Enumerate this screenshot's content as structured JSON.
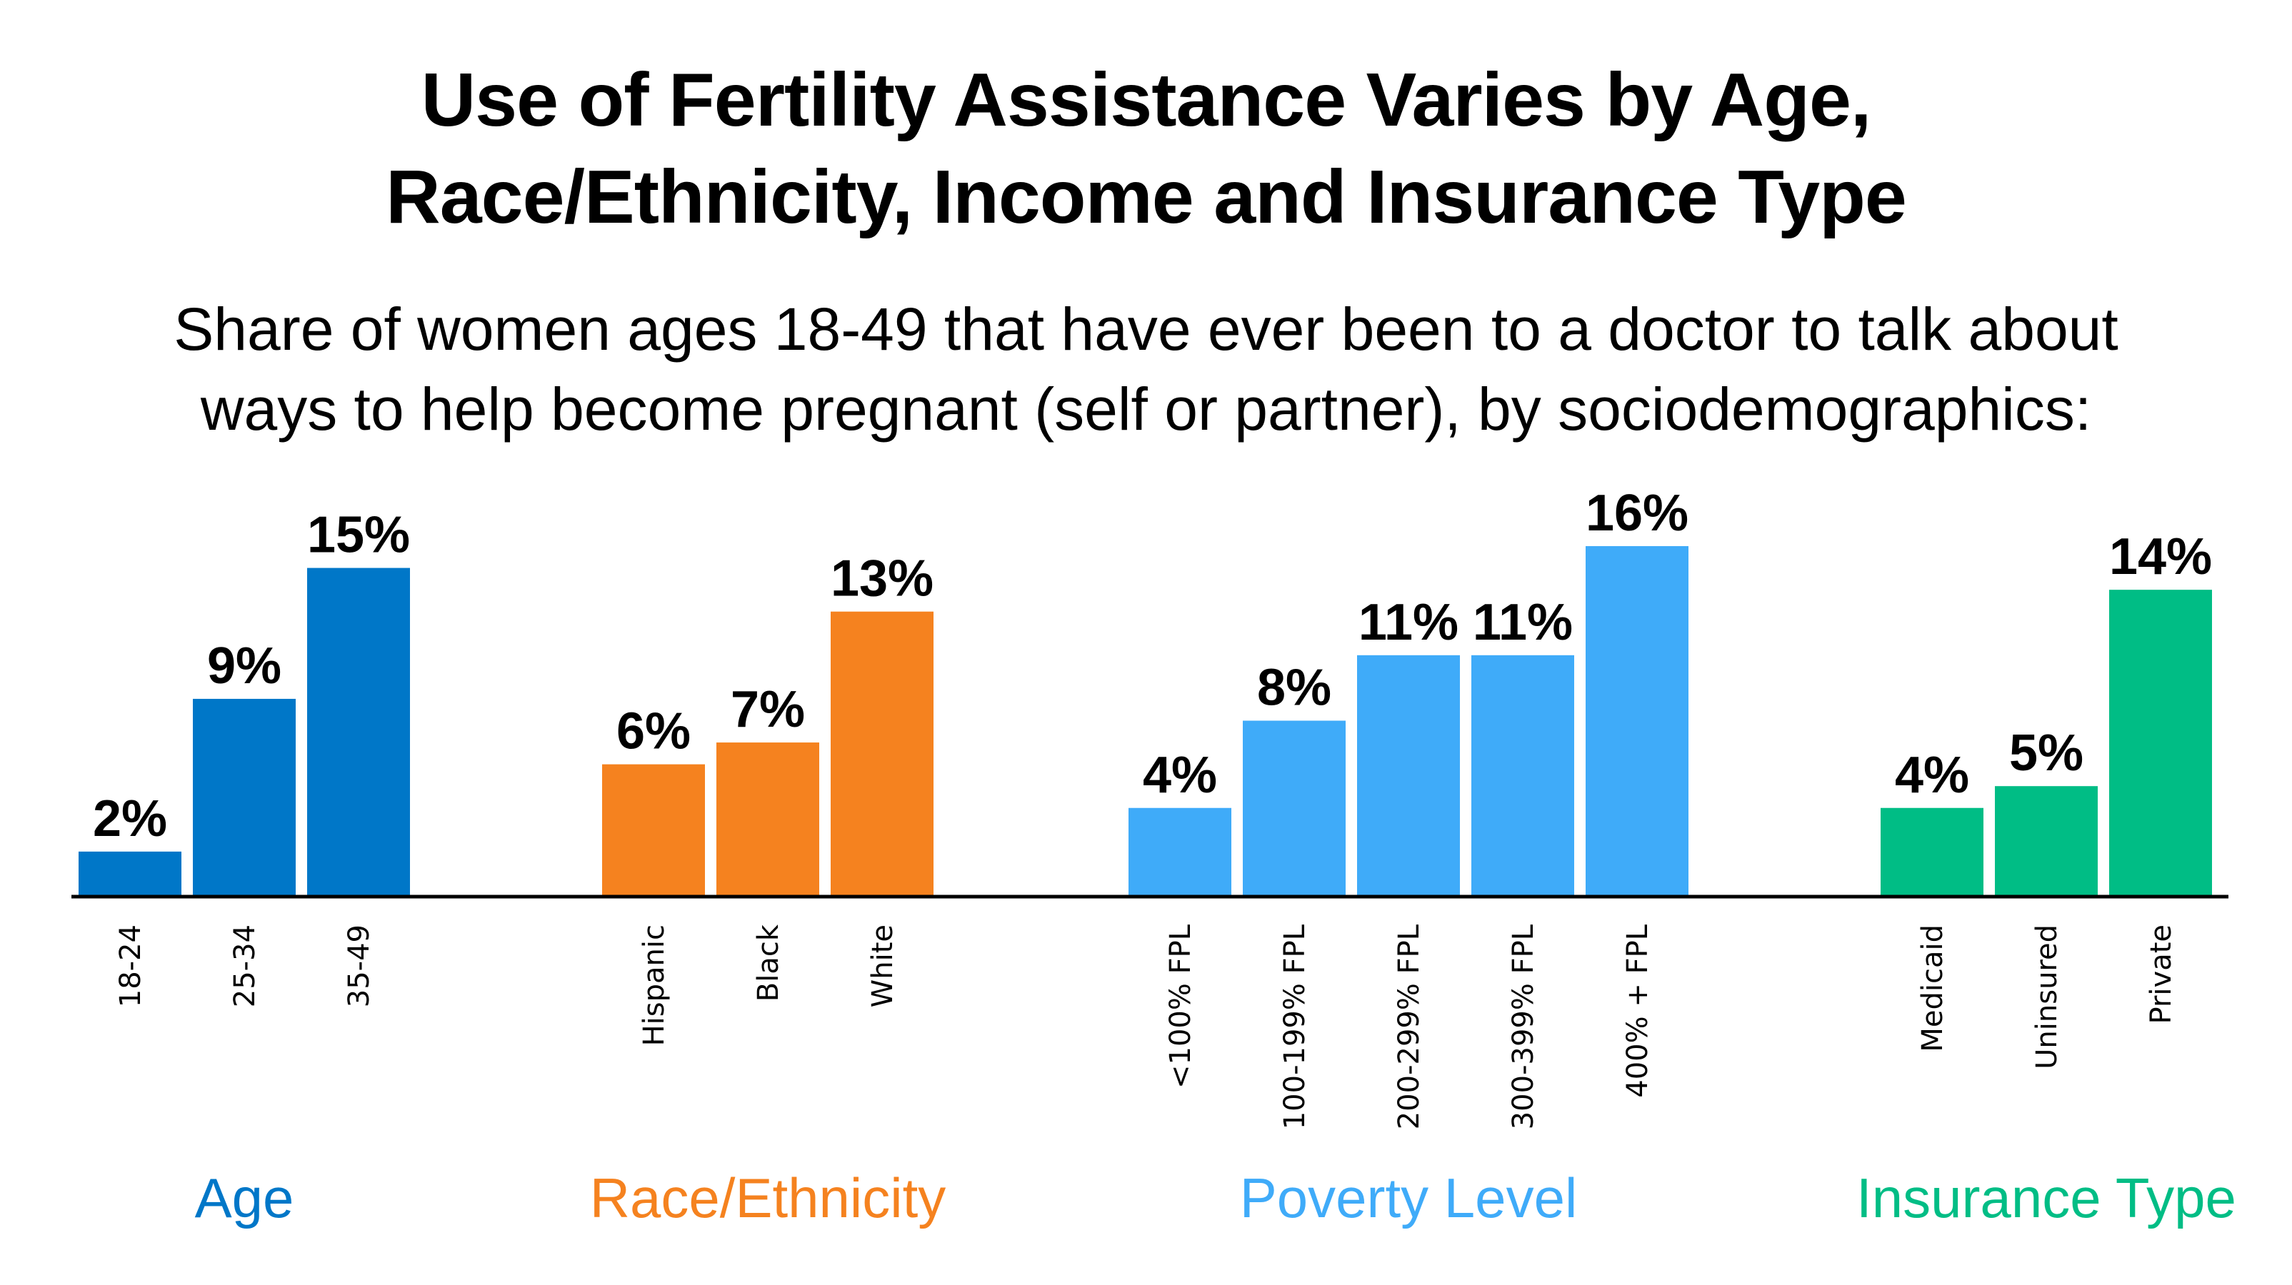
{
  "title_lines": [
    "Use of Fertility Assistance Varies by Age,",
    "Race/Ethnicity, Income and Insurance Type"
  ],
  "subtitle_lines": [
    "Share of women ages 18-49 that have ever been to a doctor to talk about",
    "ways to help become pregnant (self or partner), by sociodemographics:"
  ],
  "chart_data": {
    "type": "bar",
    "title": "Use of Fertility Assistance Varies by Age, Race/Ethnicity, Income and Insurance Type",
    "subtitle": "Share of women ages 18-49 that have ever been to a doctor to talk about ways to help become pregnant (self or partner), by sociodemographics:",
    "xlabel": "",
    "ylabel": "",
    "ylim": [
      0,
      16
    ],
    "grid": false,
    "value_format": "percent",
    "groups": [
      {
        "name": "Age",
        "color": "#0077C8",
        "categories": [
          "18-24",
          "25-34",
          "35-49"
        ],
        "values": [
          2,
          9,
          15
        ]
      },
      {
        "name": "Race/Ethnicity",
        "color": "#F5821F",
        "categories": [
          "Hispanic",
          "Black",
          "White"
        ],
        "values": [
          6,
          7,
          13
        ]
      },
      {
        "name": "Poverty Level",
        "color": "#3FABF9",
        "categories": [
          "<100% FPL",
          "100-199% FPL",
          "200-299% FPL",
          "300-399% FPL",
          "400% + FPL"
        ],
        "values": [
          4,
          8,
          11,
          11,
          16
        ]
      },
      {
        "name": "Insurance Type",
        "color": "#00BD85",
        "categories": [
          "Medicaid",
          "Uninsured",
          "Private"
        ],
        "values": [
          4,
          5,
          14
        ]
      }
    ]
  }
}
